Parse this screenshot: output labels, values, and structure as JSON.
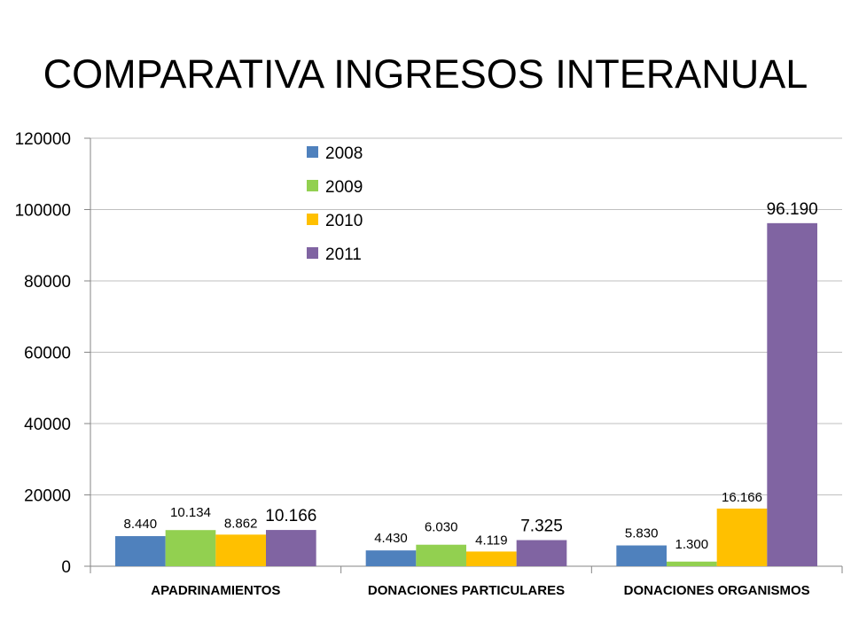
{
  "slide": {
    "title": "COMPARATIVA INGRESOS INTERANUAL"
  },
  "chart_data": {
    "type": "bar",
    "title": "COMPARATIVA INGRESOS INTERANUAL",
    "xlabel": "",
    "ylabel": "",
    "ylim": [
      0,
      120000
    ],
    "yticks": [
      0,
      20000,
      40000,
      60000,
      80000,
      100000,
      120000
    ],
    "ytick_labels": [
      "0",
      "20000",
      "40000",
      "60000",
      "80000",
      "100000",
      "120000"
    ],
    "grid": true,
    "legend_position": "top-center",
    "categories": [
      "APADRINAMIENTOS",
      "DONACIONES PARTICULARES",
      "DONACIONES ORGANISMOS"
    ],
    "series": [
      {
        "name": "2008",
        "color": "#4F81BD",
        "values": [
          8440,
          4430,
          5830
        ],
        "labels": [
          "8.440",
          "4.430",
          "5.830"
        ]
      },
      {
        "name": "2009",
        "color": "#92D050",
        "values": [
          10134,
          6030,
          1300
        ],
        "labels": [
          "10.134",
          "6.030",
          "1.300"
        ]
      },
      {
        "name": "2010",
        "color": "#FFC000",
        "values": [
          8862,
          4119,
          16166
        ],
        "labels": [
          "8.862",
          "4.119",
          "16.166"
        ]
      },
      {
        "name": "2011",
        "color": "#8064A2",
        "values": [
          10166,
          7325,
          96190
        ],
        "labels": [
          "10.166",
          "7.325",
          "96.190"
        ]
      }
    ]
  }
}
